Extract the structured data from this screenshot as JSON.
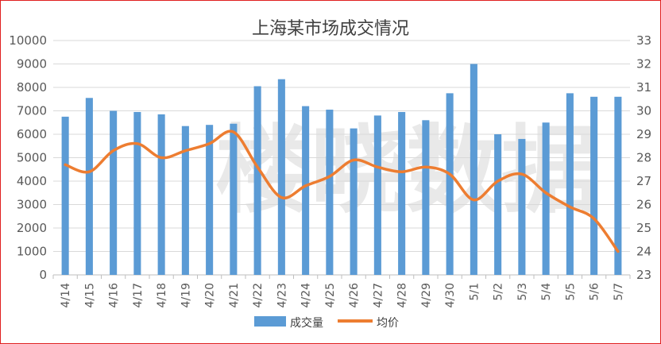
{
  "chart_data": {
    "type": "bar",
    "title": "上海某市场成交情况",
    "categories": [
      "4/14",
      "4/15",
      "4/16",
      "4/17",
      "4/18",
      "4/19",
      "4/20",
      "4/21",
      "4/22",
      "4/23",
      "4/24",
      "4/25",
      "4/26",
      "4/27",
      "4/28",
      "4/29",
      "4/30",
      "5/1",
      "5/2",
      "5/3",
      "5/4",
      "5/5",
      "5/6",
      "5/7"
    ],
    "series": [
      {
        "name": "成交量",
        "type": "bar",
        "axis": "left",
        "color": "#5b9bd5",
        "values": [
          6750,
          7550,
          7000,
          6950,
          6850,
          6350,
          6400,
          6450,
          8050,
          8350,
          7200,
          7050,
          6250,
          6800,
          6950,
          6600,
          7750,
          9000,
          6000,
          5800,
          6500,
          7750,
          7600,
          7600
        ]
      },
      {
        "name": "均价",
        "type": "line",
        "axis": "right",
        "color": "#ed7d31",
        "values": [
          27.7,
          27.4,
          28.3,
          28.6,
          28.0,
          28.3,
          28.6,
          29.1,
          27.6,
          26.3,
          26.8,
          27.2,
          27.9,
          27.6,
          27.4,
          27.6,
          27.3,
          26.2,
          27.0,
          27.3,
          26.5,
          25.9,
          25.4,
          24.0
        ]
      }
    ],
    "yleft": {
      "min": 0,
      "max": 10000,
      "step": 1000
    },
    "yright": {
      "min": 23,
      "max": 33,
      "step": 1
    },
    "legend_position": "bottom",
    "grid": true,
    "watermark": "楼晓数据"
  }
}
